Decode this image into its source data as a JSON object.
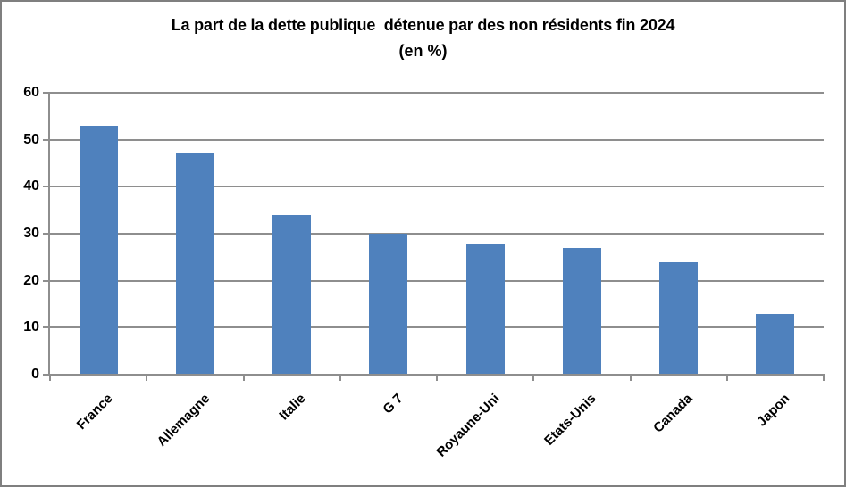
{
  "chart_data": {
    "type": "bar",
    "title": "La part de la dette publique  détenue par des non résidents fin 2024",
    "subtitle": "(en %)",
    "categories": [
      "France",
      "Allemagne",
      "Italie",
      "G 7",
      "Royaune-Uni",
      "Etats-Unis",
      "Canada",
      "Japon"
    ],
    "values": [
      53,
      47,
      34,
      30,
      28,
      27,
      24,
      13
    ],
    "series_name": "Part de la dette publique détenue par des non résidents (%)",
    "xlabel": "",
    "ylabel": "",
    "ylim": [
      0,
      60
    ],
    "yticks": [
      0,
      10,
      20,
      30,
      40,
      50,
      60
    ],
    "grid": true,
    "legend_position": "none",
    "colors": {
      "bar": "#4f81bd",
      "gridline": "#8e8e8e",
      "axis": "#8e8e8e",
      "border": "#7f7f7f",
      "text": "#000000",
      "background": "#ffffff"
    }
  }
}
